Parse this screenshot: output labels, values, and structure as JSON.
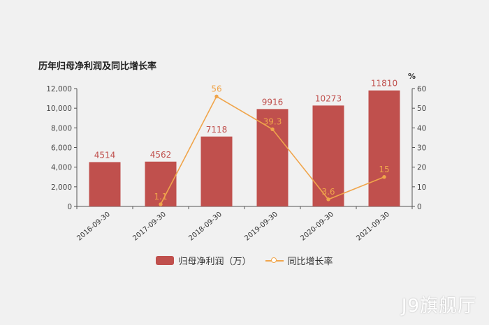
{
  "chart_data": {
    "type": "bar",
    "title": "历年归母净利润及同比增长率",
    "categories": [
      "2016-09-30",
      "2017-09-30",
      "2018-09-30",
      "2019-09-30",
      "2020-09-30",
      "2021-09-30"
    ],
    "series": [
      {
        "name": "归母净利润（万）",
        "type": "bar",
        "axis": "left",
        "values": [
          4514,
          4562,
          7118,
          9916,
          10273,
          11810
        ],
        "labels": [
          "4514",
          "4562",
          "7118",
          "9916",
          "10273",
          "11810"
        ]
      },
      {
        "name": "同比增长率",
        "type": "line",
        "axis": "right",
        "values": [
          null,
          1.1,
          56,
          39.3,
          3.6,
          15
        ],
        "labels": [
          "",
          "1.1",
          "56",
          "39.3",
          "3.6",
          "15"
        ]
      }
    ],
    "y_left": {
      "min": 0,
      "max": 12000,
      "ticks": [
        0,
        2000,
        4000,
        6000,
        8000,
        10000,
        12000
      ],
      "tick_labels": [
        "0",
        "2,000",
        "4,000",
        "6,000",
        "8,000",
        "10,000",
        "12,000"
      ]
    },
    "y_right": {
      "min": 0,
      "max": 60,
      "ticks": [
        0,
        10,
        20,
        30,
        40,
        50,
        60
      ],
      "tick_labels": [
        "0",
        "10",
        "20",
        "30",
        "40",
        "50",
        "60"
      ],
      "unit": "%"
    },
    "legend_position": "bottom-center",
    "grid": false,
    "colors": {
      "bar": "#c0504d",
      "line": "#f0a54b",
      "axis": "#555555"
    }
  },
  "watermark": "J9旗舰厅"
}
